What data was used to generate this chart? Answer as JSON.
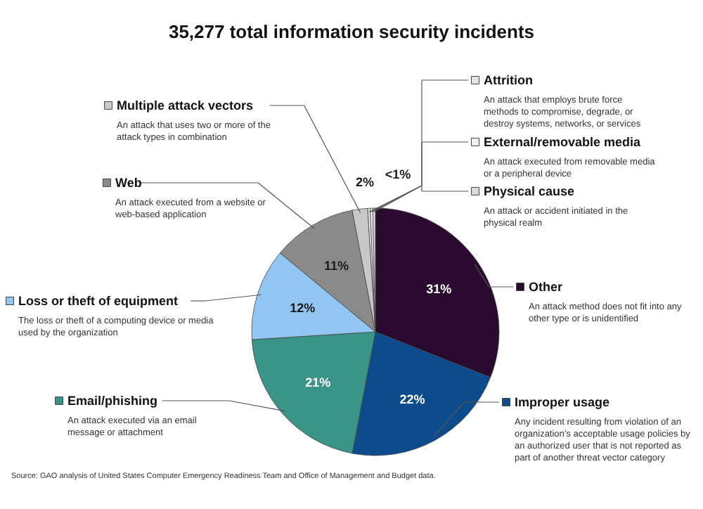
{
  "chart_data": {
    "type": "pie",
    "title": "35,277 total information security incidents",
    "categories": [
      "Other",
      "Improper usage",
      "Email/phishing",
      "Loss or theft of equipment",
      "Web",
      "Multiple attack vectors",
      "Attrition",
      "External/removable media",
      "Physical cause"
    ],
    "values": [
      31,
      22,
      21,
      12,
      11,
      2,
      0.33,
      0.33,
      0.34
    ],
    "colors": [
      "#2b0a30",
      "#0d4c8c",
      "#3a9488",
      "#92c6f2",
      "#8a8a8a",
      "#c8c8c8",
      "#e6e6e6",
      "#f2f2f2",
      "#dcdcdc"
    ],
    "legend": "top left",
    "value_labels": [
      "31%",
      "22%",
      "21%",
      "12%",
      "11%",
      "2%",
      "<1%",
      null,
      null
    ],
    "annotations": [
      "An attack method does not fit into any other type or is unidentified",
      "Any incident resulting from violation of an organization’s acceptable usage policies by an authorized user that is not reported as part of another threat vector category",
      "An attack executed via an email message or attachment",
      "The loss or theft of a computing device or media used by the organization",
      "An attack executed from a website or web-based application",
      "An attack that uses two or more of the attack types in combination",
      "An attack that employs brute force methods to compromise, degrade, or destroy systems, networks, or services",
      "An attack executed from removable media or a peripheral device",
      "An attack or accident initiated in the physical realm",
      "Source: GAO analysis of United States Computer Emergency Readiness Team and Office of Management and Budget data."
    ]
  }
}
